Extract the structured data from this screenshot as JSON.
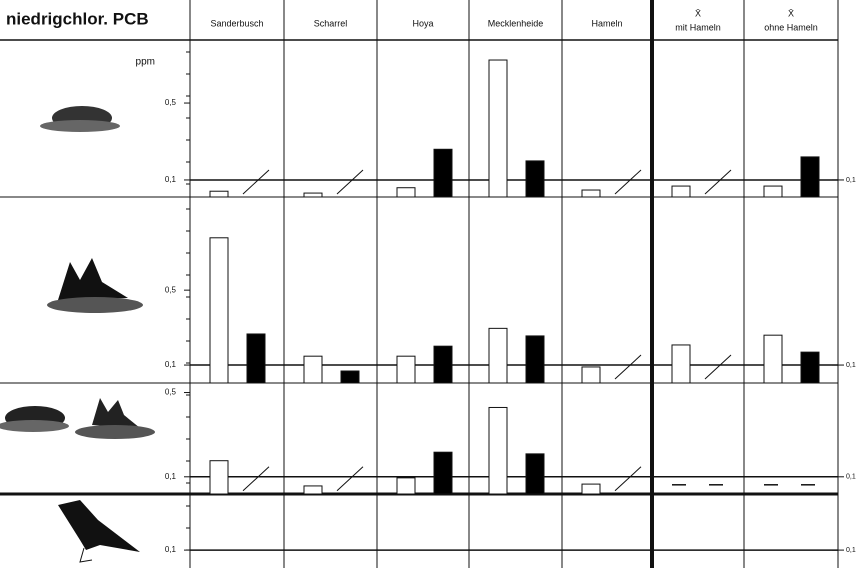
{
  "title": "niedrigchlor. PCB",
  "unit": "ppm",
  "mean_symbol": "X̄",
  "columns": [
    "Sanderbusch",
    "Scharrel",
    "Hoya",
    "Mecklenheide",
    "Hameln",
    "mit Hameln",
    "ohne Hameln"
  ],
  "chart_data": [
    {
      "type": "bar",
      "log_scale": true,
      "ylim": [
        0.07,
        1.87
      ],
      "yticks": [
        {
          "value": 0.1,
          "label": "0,1"
        },
        {
          "value": 0.5,
          "label": "0,5"
        }
      ],
      "series": [
        {
          "color": "#ffffff",
          "values": [
            0.079,
            0.076,
            0.085,
            1.23,
            0.081,
            0.088,
            0.088
          ]
        },
        {
          "color": "#000000",
          "values": [
            null,
            null,
            0.19,
            0.149,
            null,
            null,
            0.162
          ]
        }
      ]
    },
    {
      "type": "bar",
      "log_scale": true,
      "ylim": [
        0.068,
        3.7
      ],
      "yticks": [
        {
          "value": 0.1,
          "label": "0,1"
        },
        {
          "value": 0.5,
          "label": "0,5"
        }
      ],
      "series": [
        {
          "color": "#ffffff",
          "values": [
            1.54,
            0.121,
            0.121,
            0.22,
            0.096,
            0.154,
            0.19
          ]
        },
        {
          "color": "#000000",
          "values": [
            0.195,
            0.088,
            0.15,
            0.187,
            null,
            null,
            0.132
          ]
        }
      ]
    },
    {
      "type": "bar",
      "log_scale": true,
      "ylim": [
        0.072,
        0.6
      ],
      "yticks": [
        {
          "value": 0.1,
          "label": "0,1"
        },
        {
          "value": 0.5,
          "label": "0,5"
        }
      ],
      "series": [
        {
          "color": "#ffffff",
          "values": [
            0.136,
            0.084,
            0.098,
            0.376,
            0.087,
            null,
            null
          ]
        },
        {
          "color": "#000000",
          "values": [
            null,
            null,
            0.16,
            0.155,
            null,
            null,
            null
          ]
        }
      ]
    },
    {
      "type": "bar",
      "log_scale": true,
      "ylim": [
        0.069,
        0.32
      ],
      "yticks": [
        {
          "value": 0.1,
          "label": "0,1"
        }
      ],
      "series": []
    }
  ]
}
